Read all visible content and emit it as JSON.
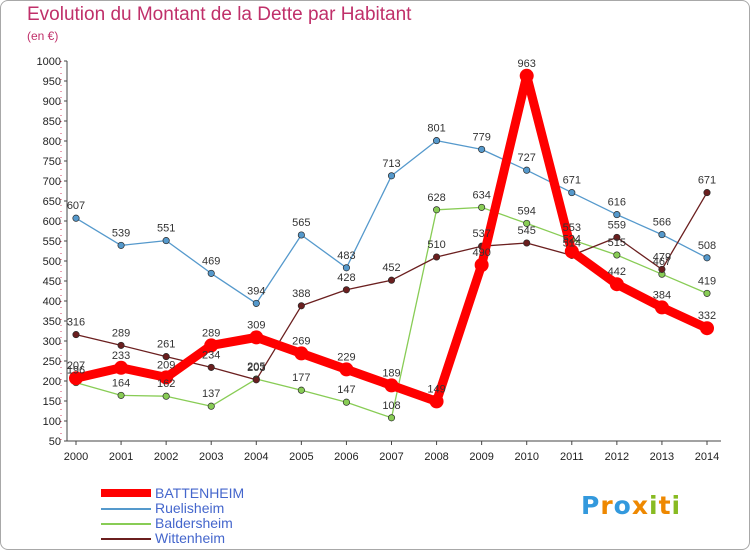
{
  "chart_data": {
    "type": "line",
    "title": "Evolution du Montant de la Dette par Habitant",
    "unit_label": "(en €)",
    "categories": [
      "2000",
      "2001",
      "2002",
      "2003",
      "2004",
      "2005",
      "2006",
      "2007",
      "2008",
      "2009",
      "2010",
      "2011",
      "2012",
      "2013",
      "2014"
    ],
    "ylim": [
      50,
      1000
    ],
    "yticks": [
      50,
      100,
      150,
      200,
      250,
      300,
      350,
      400,
      450,
      500,
      550,
      600,
      650,
      700,
      750,
      800,
      850,
      900,
      950,
      1000
    ],
    "grid": false,
    "legend_position": "bottom-left",
    "series": [
      {
        "name": "BATTENHEIM",
        "color": "#ff0000",
        "values": [
          207,
          233,
          209,
          289,
          309,
          269,
          229,
          189,
          149,
          490,
          963,
          524,
          442,
          384,
          332
        ]
      },
      {
        "name": "Ruelisheim",
        "color": "#5599cc",
        "values": [
          607,
          539,
          551,
          469,
          394,
          565,
          483,
          713,
          801,
          779,
          727,
          671,
          616,
          566,
          508
        ]
      },
      {
        "name": "Baldersheim",
        "color": "#88cc55",
        "values": [
          196,
          164,
          162,
          137,
          205,
          177,
          147,
          108,
          628,
          634,
          594,
          553,
          515,
          467,
          419
        ]
      },
      {
        "name": "Wittenheim",
        "color": "#6b1f1f",
        "values": [
          316,
          289,
          261,
          234,
          203,
          388,
          428,
          452,
          510,
          537,
          545,
          514,
          559,
          479,
          671
        ]
      }
    ],
    "labels_shown": [
      [
        "207",
        "233",
        "209",
        "289",
        "309",
        "269",
        "229",
        "189",
        "149",
        "490",
        "963",
        "524",
        "442",
        "384",
        "332"
      ],
      [
        "607",
        "539",
        "551",
        "469",
        "394",
        "565",
        "483",
        "713",
        "801",
        "779",
        "727",
        "671",
        "616",
        "566",
        "508"
      ],
      [
        "196",
        "164",
        "162",
        "137",
        "205",
        "177",
        "147",
        "108",
        "628",
        "634",
        "594",
        "553",
        "515",
        "467",
        "419"
      ],
      [
        "316",
        "289",
        "261",
        "234",
        "203",
        "388",
        "428",
        "452",
        "510",
        "537",
        "545",
        "514",
        "559",
        "479",
        "671"
      ]
    ]
  },
  "logo": {
    "letters": [
      "P",
      "r",
      "o",
      "x",
      "i",
      "t",
      "i"
    ],
    "colors": [
      "#3399dd",
      "#ee8800",
      "#3399dd",
      "#ee8800",
      "#88bb22",
      "#ee8800",
      "#88bb22"
    ]
  }
}
